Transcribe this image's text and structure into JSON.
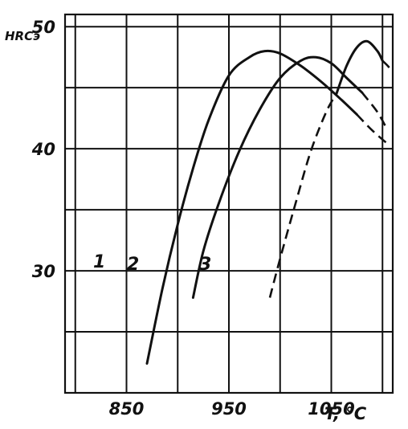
{
  "chart_data": {
    "type": "line",
    "ylabel": "HRCэ",
    "xlabel": "T, °C",
    "xlim": [
      790,
      1110
    ],
    "ylim": [
      20,
      51
    ],
    "x_ticks": [
      {
        "value": 850,
        "label": "850"
      },
      {
        "value": 950,
        "label": "950"
      },
      {
        "value": 1050,
        "label": "1050"
      }
    ],
    "y_ticks": [
      {
        "value": 30,
        "label": "30"
      },
      {
        "value": 40,
        "label": "40"
      },
      {
        "value": 50,
        "label": "50"
      }
    ],
    "grid": true,
    "series": [
      {
        "name": "1",
        "solid": [
          [
            870,
            22.4
          ],
          [
            885,
            28.5
          ],
          [
            900,
            33.8
          ],
          [
            915,
            38.4
          ],
          [
            930,
            42.3
          ],
          [
            950,
            46.0
          ],
          [
            970,
            47.5
          ],
          [
            985,
            48.0
          ],
          [
            1000,
            47.8
          ],
          [
            1020,
            46.8
          ],
          [
            1040,
            45.5
          ],
          [
            1060,
            44.0
          ],
          [
            1075,
            42.8
          ]
        ],
        "dashed": [
          [
            1075,
            42.8
          ],
          [
            1090,
            41.5
          ],
          [
            1105,
            40.4
          ]
        ]
      },
      {
        "name": "2",
        "solid": [
          [
            915,
            27.8
          ],
          [
            925,
            31.6
          ],
          [
            940,
            35.5
          ],
          [
            960,
            39.8
          ],
          [
            980,
            43.2
          ],
          [
            1000,
            45.8
          ],
          [
            1020,
            47.2
          ],
          [
            1035,
            47.5
          ],
          [
            1050,
            47.0
          ],
          [
            1065,
            45.8
          ],
          [
            1080,
            44.6
          ]
        ],
        "dashed": [
          [
            1080,
            44.6
          ],
          [
            1095,
            43.0
          ],
          [
            1105,
            41.5
          ]
        ]
      },
      {
        "name": "3",
        "solid": [
          [
            1055,
            44.5
          ],
          [
            1065,
            46.8
          ],
          [
            1075,
            48.3
          ],
          [
            1085,
            48.8
          ],
          [
            1095,
            48.0
          ],
          [
            1100,
            47.2
          ]
        ],
        "dashed": [
          [
            990,
            27.8
          ],
          [
            1000,
            31.0
          ],
          [
            1015,
            35.5
          ],
          [
            1030,
            39.8
          ],
          [
            1045,
            43.0
          ],
          [
            1055,
            44.5
          ]
        ],
        "dashed_tail": [
          [
            1100,
            47.2
          ],
          [
            1105,
            46.8
          ],
          [
            1110,
            46.3
          ]
        ]
      }
    ]
  }
}
